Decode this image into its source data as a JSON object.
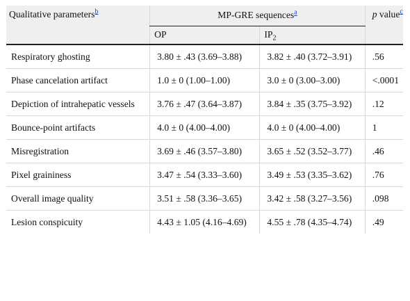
{
  "header": {
    "param_label": "Qualitative parameters",
    "param_note": "b",
    "seq_label": "MP-GRE sequences",
    "seq_note": "a",
    "p_italic": "p",
    "p_label": " value",
    "p_note": "c",
    "op_label": "OP",
    "ip_label": "IP",
    "ip_sub": "2"
  },
  "rows": [
    {
      "param": "Respiratory ghosting",
      "op": "3.80 ± .43 (3.69–3.88)",
      "ip": "3.82 ± .40 (3.72–3.91)",
      "p": ".56"
    },
    {
      "param": "Phase cancelation artifact",
      "op": "1.0 ± 0 (1.00–1.00)",
      "ip": "3.0 ± 0 (3.00–3.00)",
      "p": "<.0001"
    },
    {
      "param": "Depiction of intrahepatic vessels",
      "op": "3.76 ± .47 (3.64–3.87)",
      "ip": "3.84 ± .35 (3.75–3.92)",
      "p": ".12"
    },
    {
      "param": "Bounce-point artifacts",
      "op": "4.0 ± 0 (4.00–4.00)",
      "ip": "4.0 ± 0 (4.00–4.00)",
      "p": "1"
    },
    {
      "param": "Misregistration",
      "op": "3.69 ± .46 (3.57–3.80)",
      "ip": "3.65 ± .52 (3.52–3.77)",
      "p": ".46"
    },
    {
      "param": "Pixel graininess",
      "op": "3.47 ± .54 (3.33–3.60)",
      "ip": "3.49 ± .53 (3.35–3.62)",
      "p": ".76"
    },
    {
      "param": "Overall image quality",
      "op": "3.51 ± .58 (3.36–3.65)",
      "ip": "3.42 ± .58 (3.27–3.56)",
      "p": ".098"
    },
    {
      "param": "Lesion conspicuity",
      "op": "4.43 ± 1.05 (4.16–4.69)",
      "ip": "4.55 ± .78 (4.35–4.74)",
      "p": ".49"
    }
  ]
}
